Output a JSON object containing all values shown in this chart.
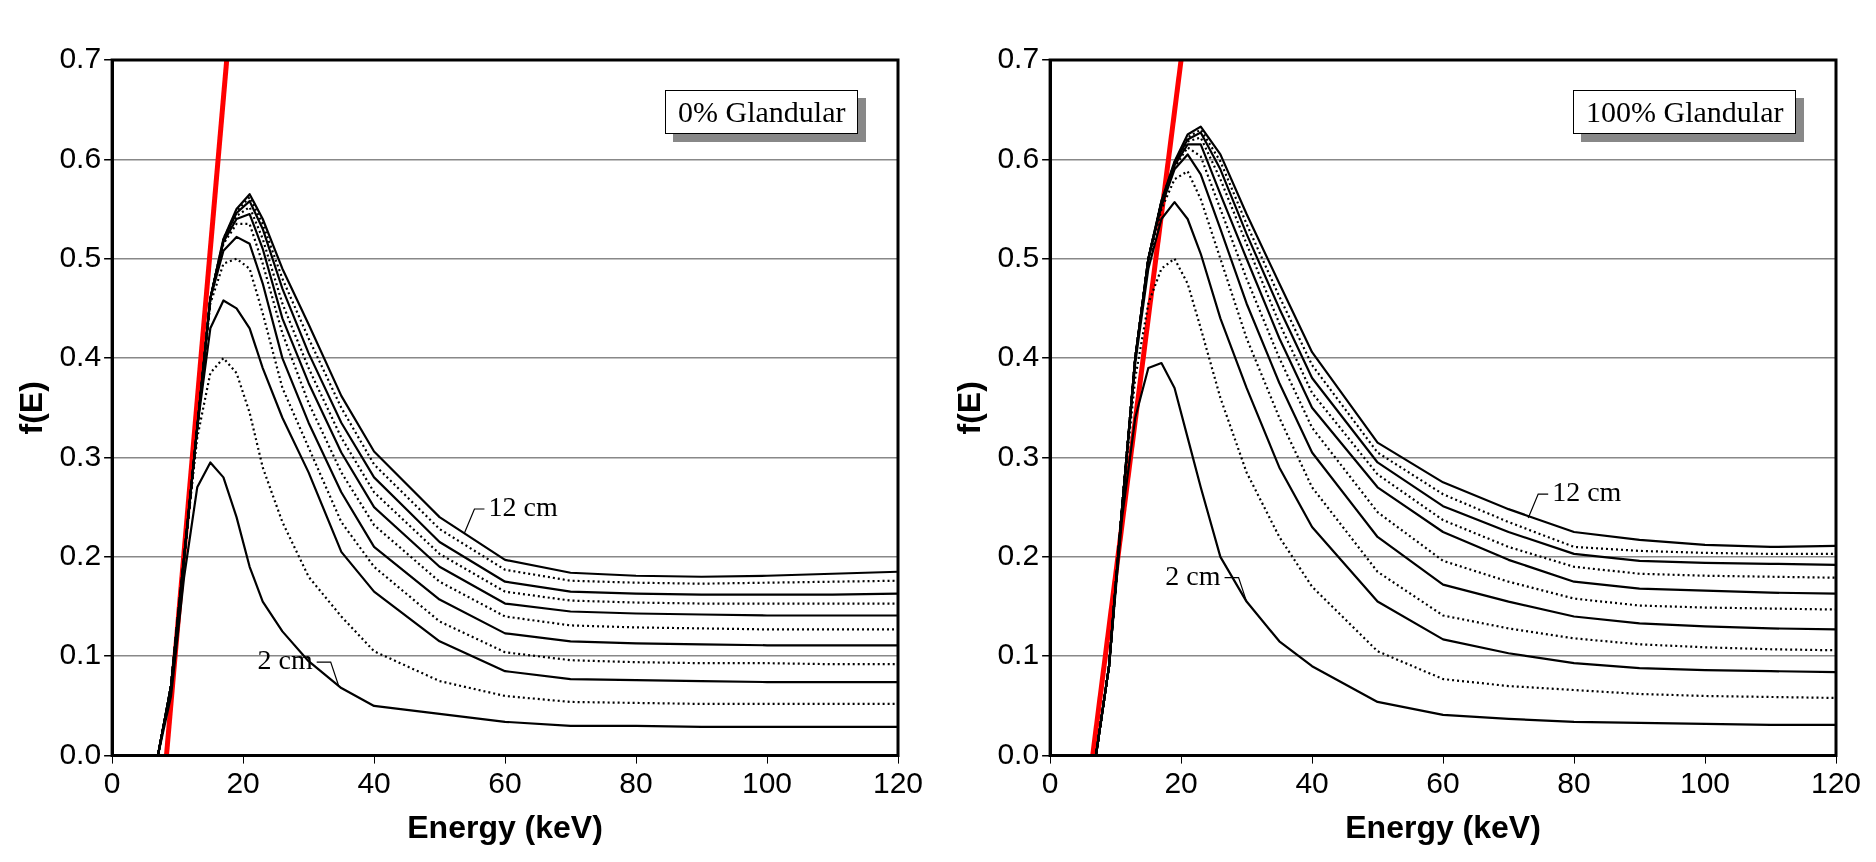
{
  "chart_data": [
    {
      "type": "line",
      "xlabel": "Energy (keV)",
      "ylabel": "f(E)",
      "xlim": [
        0,
        120
      ],
      "ylim": [
        0,
        0.7
      ],
      "xticks": [
        0,
        20,
        40,
        60,
        80,
        100,
        120
      ],
      "yticks": [
        {
          "value": 0,
          "label": "0.0"
        },
        0.1,
        0.2,
        0.3,
        0.4,
        0.5,
        0.6,
        0.7
      ],
      "grid": "y",
      "legend": false,
      "marker": "none",
      "x": [
        0,
        7,
        9,
        11,
        13,
        15,
        17,
        19,
        21,
        23,
        26,
        30,
        35,
        40,
        50,
        60,
        70,
        80,
        90,
        100,
        110,
        120
      ],
      "annotations": [
        "0% Glandular",
        {
          "text": "2 cm",
          "x": 34.6,
          "y": 0.07
        },
        {
          "text": "12 cm",
          "x": 53.8,
          "y": 0.224
        }
      ],
      "series": [
        {
          "color": "#000000",
          "line_style": "solid",
          "values": [
            0,
            0,
            0.06,
            0.18,
            0.27,
            0.295,
            0.28,
            0.24,
            0.19,
            0.155,
            0.125,
            0.095,
            0.068,
            0.05,
            0.042,
            0.034,
            0.03,
            0.03,
            0.029,
            0.029,
            0.029,
            0.029
          ]
        },
        {
          "color": "#000000",
          "line_style": "dotted",
          "values": [
            0,
            0,
            0.07,
            0.2,
            0.32,
            0.385,
            0.4,
            0.385,
            0.345,
            0.29,
            0.235,
            0.18,
            0.14,
            0.105,
            0.075,
            0.06,
            0.054,
            0.053,
            0.052,
            0.052,
            0.052,
            0.052
          ]
        },
        {
          "color": "#000000",
          "line_style": "solid",
          "values": [
            0,
            0,
            0.07,
            0.2,
            0.33,
            0.43,
            0.458,
            0.45,
            0.43,
            0.39,
            0.34,
            0.285,
            0.205,
            0.165,
            0.115,
            0.085,
            0.077,
            0.076,
            0.075,
            0.074,
            0.074,
            0.074
          ]
        },
        {
          "color": "#000000",
          "line_style": "dotted",
          "values": [
            0,
            0,
            0.07,
            0.2,
            0.33,
            0.455,
            0.495,
            0.5,
            0.49,
            0.445,
            0.37,
            0.31,
            0.235,
            0.19,
            0.135,
            0.104,
            0.096,
            0.094,
            0.093,
            0.093,
            0.092,
            0.092
          ]
        },
        {
          "color": "#000000",
          "line_style": "solid",
          "values": [
            0,
            0,
            0.07,
            0.2,
            0.33,
            0.46,
            0.508,
            0.522,
            0.515,
            0.475,
            0.4,
            0.335,
            0.265,
            0.21,
            0.157,
            0.123,
            0.115,
            0.113,
            0.112,
            0.111,
            0.111,
            0.111
          ]
        },
        {
          "color": "#000000",
          "line_style": "dotted",
          "values": [
            0,
            0,
            0.07,
            0.2,
            0.33,
            0.46,
            0.515,
            0.535,
            0.535,
            0.495,
            0.425,
            0.355,
            0.285,
            0.232,
            0.175,
            0.14,
            0.131,
            0.129,
            0.128,
            0.127,
            0.127,
            0.127
          ]
        },
        {
          "color": "#000000",
          "line_style": "solid",
          "values": [
            0,
            0,
            0.07,
            0.2,
            0.33,
            0.46,
            0.517,
            0.54,
            0.545,
            0.51,
            0.44,
            0.375,
            0.305,
            0.25,
            0.19,
            0.153,
            0.145,
            0.143,
            0.142,
            0.141,
            0.141,
            0.141
          ]
        },
        {
          "color": "#000000",
          "line_style": "dotted",
          "values": [
            0,
            0,
            0.07,
            0.2,
            0.33,
            0.46,
            0.518,
            0.543,
            0.552,
            0.52,
            0.455,
            0.39,
            0.32,
            0.265,
            0.203,
            0.165,
            0.156,
            0.154,
            0.153,
            0.153,
            0.153,
            0.153
          ]
        },
        {
          "color": "#000000",
          "line_style": "solid",
          "values": [
            0,
            0,
            0.07,
            0.2,
            0.33,
            0.46,
            0.519,
            0.546,
            0.558,
            0.53,
            0.47,
            0.405,
            0.335,
            0.28,
            0.215,
            0.175,
            0.165,
            0.163,
            0.162,
            0.162,
            0.162,
            0.163
          ]
        },
        {
          "color": "#000000",
          "line_style": "dotted",
          "values": [
            0,
            0,
            0.07,
            0.2,
            0.33,
            0.46,
            0.52,
            0.548,
            0.562,
            0.535,
            0.48,
            0.42,
            0.35,
            0.293,
            0.228,
            0.187,
            0.176,
            0.174,
            0.173,
            0.174,
            0.175,
            0.176
          ]
        },
        {
          "color": "#000000",
          "line_style": "solid",
          "values": [
            0,
            0,
            0.07,
            0.2,
            0.33,
            0.46,
            0.52,
            0.55,
            0.565,
            0.54,
            0.49,
            0.434,
            0.362,
            0.306,
            0.24,
            0.197,
            0.184,
            0.181,
            0.18,
            0.181,
            0.183,
            0.185
          ]
        },
        {
          "color": "#ff0000",
          "line_style": "solid",
          "x": [
            8.3,
            17.5
          ],
          "values": [
            0,
            0.7
          ]
        }
      ]
    },
    {
      "type": "line",
      "xlabel": "Energy (keV)",
      "ylabel": "f(E)",
      "xlim": [
        0,
        120
      ],
      "ylim": [
        0,
        0.7
      ],
      "xticks": [
        0,
        20,
        40,
        60,
        80,
        100,
        120
      ],
      "yticks": [
        {
          "value": 0,
          "label": "0.0"
        },
        0.1,
        0.2,
        0.3,
        0.4,
        0.5,
        0.6,
        0.7
      ],
      "grid": "y",
      "legend": false,
      "marker": "none",
      "x": [
        0,
        7,
        9,
        11,
        13,
        15,
        17,
        19,
        21,
        23,
        26,
        30,
        35,
        40,
        50,
        60,
        70,
        80,
        90,
        100,
        110,
        120
      ],
      "annotations": [
        "100% Glandular",
        {
          "text": "2 cm",
          "x": 30,
          "y": 0.155
        },
        {
          "text": "12 cm",
          "x": 73,
          "y": 0.239
        }
      ],
      "series": [
        {
          "color": "#000000",
          "line_style": "solid",
          "values": [
            0,
            0,
            0.09,
            0.24,
            0.34,
            0.39,
            0.395,
            0.37,
            0.32,
            0.27,
            0.2,
            0.155,
            0.115,
            0.09,
            0.054,
            0.041,
            0.037,
            0.034,
            0.033,
            0.032,
            0.031,
            0.031
          ]
        },
        {
          "color": "#000000",
          "line_style": "dotted",
          "values": [
            0,
            0,
            0.09,
            0.25,
            0.38,
            0.455,
            0.49,
            0.5,
            0.475,
            0.43,
            0.36,
            0.285,
            0.22,
            0.17,
            0.105,
            0.077,
            0.07,
            0.066,
            0.062,
            0.06,
            0.059,
            0.058
          ]
        },
        {
          "color": "#000000",
          "line_style": "solid",
          "values": [
            0,
            0,
            0.09,
            0.25,
            0.395,
            0.49,
            0.54,
            0.557,
            0.54,
            0.505,
            0.44,
            0.37,
            0.29,
            0.23,
            0.155,
            0.117,
            0.103,
            0.093,
            0.088,
            0.086,
            0.085,
            0.084
          ]
        },
        {
          "color": "#000000",
          "line_style": "dotted",
          "values": [
            0,
            0,
            0.09,
            0.25,
            0.4,
            0.495,
            0.55,
            0.58,
            0.588,
            0.56,
            0.5,
            0.42,
            0.34,
            0.27,
            0.185,
            0.141,
            0.128,
            0.118,
            0.112,
            0.109,
            0.107,
            0.106
          ]
        },
        {
          "color": "#000000",
          "line_style": "solid",
          "values": [
            0,
            0,
            0.09,
            0.25,
            0.4,
            0.5,
            0.553,
            0.59,
            0.605,
            0.585,
            0.53,
            0.455,
            0.375,
            0.305,
            0.22,
            0.172,
            0.155,
            0.14,
            0.133,
            0.13,
            0.128,
            0.127
          ]
        },
        {
          "color": "#000000",
          "line_style": "dotted",
          "values": [
            0,
            0,
            0.09,
            0.25,
            0.4,
            0.5,
            0.555,
            0.592,
            0.612,
            0.603,
            0.55,
            0.48,
            0.4,
            0.33,
            0.245,
            0.196,
            0.175,
            0.158,
            0.151,
            0.149,
            0.148,
            0.147
          ]
        },
        {
          "color": "#000000",
          "line_style": "solid",
          "values": [
            0,
            0,
            0.09,
            0.25,
            0.4,
            0.5,
            0.556,
            0.594,
            0.615,
            0.615,
            0.565,
            0.5,
            0.42,
            0.35,
            0.27,
            0.225,
            0.197,
            0.175,
            0.168,
            0.166,
            0.164,
            0.163
          ]
        },
        {
          "color": "#000000",
          "line_style": "dotted",
          "values": [
            0,
            0,
            0.09,
            0.25,
            0.4,
            0.5,
            0.557,
            0.595,
            0.618,
            0.622,
            0.58,
            0.515,
            0.435,
            0.365,
            0.283,
            0.237,
            0.21,
            0.19,
            0.183,
            0.181,
            0.18,
            0.179
          ]
        },
        {
          "color": "#000000",
          "line_style": "solid",
          "values": [
            0,
            0,
            0.09,
            0.25,
            0.4,
            0.5,
            0.557,
            0.596,
            0.62,
            0.627,
            0.59,
            0.525,
            0.45,
            0.38,
            0.295,
            0.251,
            0.225,
            0.203,
            0.196,
            0.194,
            0.193,
            0.192
          ]
        },
        {
          "color": "#000000",
          "line_style": "dotted",
          "values": [
            0,
            0,
            0.09,
            0.25,
            0.4,
            0.5,
            0.558,
            0.597,
            0.622,
            0.63,
            0.598,
            0.535,
            0.462,
            0.393,
            0.305,
            0.263,
            0.235,
            0.21,
            0.206,
            0.204,
            0.203,
            0.203
          ]
        },
        {
          "color": "#000000",
          "line_style": "solid",
          "values": [
            0,
            0,
            0.09,
            0.25,
            0.4,
            0.5,
            0.558,
            0.598,
            0.625,
            0.633,
            0.605,
            0.545,
            0.475,
            0.406,
            0.315,
            0.275,
            0.248,
            0.225,
            0.217,
            0.212,
            0.21,
            0.211
          ]
        },
        {
          "color": "#ff0000",
          "line_style": "solid",
          "x": [
            6.5,
            20
          ],
          "values": [
            0,
            0.7
          ]
        }
      ]
    }
  ]
}
